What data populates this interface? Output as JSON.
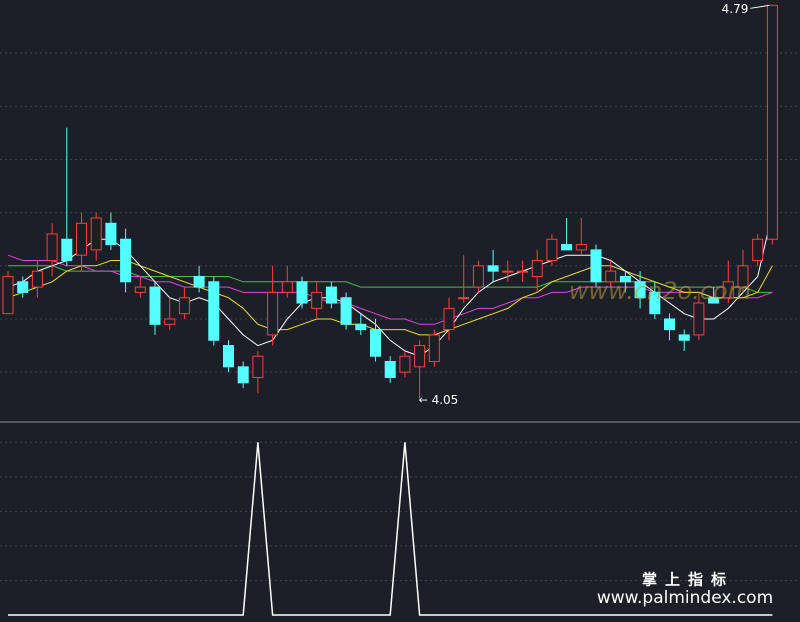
{
  "chart_data": [
    {
      "type": "candlestick",
      "open": [
        4.21,
        4.27,
        4.26,
        4.31,
        4.35,
        4.32,
        4.33,
        4.38,
        4.35,
        4.25,
        4.26,
        4.19,
        4.21,
        4.28,
        4.27,
        4.15,
        4.11,
        4.09,
        4.17,
        4.25,
        4.27,
        4.22,
        4.26,
        4.24,
        4.19,
        4.18,
        4.12,
        4.1,
        4.11,
        4.12,
        4.18,
        4.24,
        4.26,
        4.3,
        4.29,
        4.29,
        4.28,
        4.31,
        4.34,
        4.33,
        4.33,
        4.27,
        4.28,
        4.27,
        4.25,
        4.2,
        4.17,
        4.17,
        4.24,
        4.24,
        4.26,
        4.31,
        4.35
      ],
      "high": [
        4.29,
        4.28,
        4.31,
        4.38,
        4.56,
        4.4,
        4.4,
        4.4,
        4.37,
        4.28,
        4.27,
        4.24,
        4.26,
        4.3,
        4.28,
        4.16,
        4.12,
        4.14,
        4.3,
        4.3,
        4.28,
        4.27,
        4.27,
        4.25,
        4.21,
        4.2,
        4.13,
        4.14,
        4.16,
        4.18,
        4.24,
        4.32,
        4.31,
        4.33,
        4.31,
        4.31,
        4.33,
        4.36,
        4.39,
        4.39,
        4.34,
        4.31,
        4.29,
        4.29,
        4.27,
        4.21,
        4.18,
        4.25,
        4.26,
        4.31,
        4.33,
        4.36,
        4.79
      ],
      "low": [
        4.21,
        4.24,
        4.24,
        4.28,
        4.3,
        4.29,
        4.31,
        4.33,
        4.25,
        4.24,
        4.17,
        4.18,
        4.2,
        4.25,
        4.15,
        4.1,
        4.07,
        4.06,
        4.15,
        4.24,
        4.22,
        4.2,
        4.22,
        4.18,
        4.17,
        4.12,
        4.08,
        4.09,
        4.05,
        4.11,
        4.16,
        4.23,
        4.25,
        4.27,
        4.27,
        4.27,
        4.25,
        4.3,
        4.33,
        4.32,
        4.26,
        4.26,
        4.25,
        4.22,
        4.2,
        4.16,
        4.14,
        4.16,
        4.23,
        4.23,
        4.25,
        4.3,
        4.34
      ],
      "close": [
        4.28,
        4.25,
        4.29,
        4.36,
        4.31,
        4.38,
        4.39,
        4.34,
        4.27,
        4.26,
        4.19,
        4.2,
        4.24,
        4.26,
        4.16,
        4.11,
        4.08,
        4.13,
        4.25,
        4.27,
        4.23,
        4.25,
        4.23,
        4.19,
        4.18,
        4.13,
        4.09,
        4.13,
        4.15,
        4.17,
        4.22,
        4.24,
        4.3,
        4.29,
        4.29,
        4.29,
        4.31,
        4.35,
        4.33,
        4.34,
        4.27,
        4.29,
        4.27,
        4.24,
        4.21,
        4.18,
        4.16,
        4.23,
        4.23,
        4.27,
        4.3,
        4.35,
        4.79
      ],
      "up_color": "#ff3c3c",
      "down_color": "#54ffff",
      "lines": [
        {
          "color": "#40c040",
          "values": [
            4.3,
            4.3,
            4.3,
            4.3,
            4.29,
            4.29,
            4.29,
            4.29,
            4.29,
            4.28,
            4.28,
            4.28,
            4.28,
            4.28,
            4.28,
            4.28,
            4.27,
            4.27,
            4.27,
            4.27,
            4.27,
            4.27,
            4.27,
            4.27,
            4.26,
            4.26,
            4.26,
            4.26,
            4.26,
            4.26,
            4.26,
            4.26,
            4.26,
            4.26,
            4.26,
            4.26,
            4.26,
            4.27,
            4.27,
            4.27,
            4.27,
            4.27,
            4.27,
            4.27,
            4.27,
            4.26,
            4.26,
            4.26,
            4.26,
            4.26,
            4.26,
            4.25,
            4.25
          ]
        },
        {
          "color": "#e040e0",
          "values": [
            4.32,
            4.31,
            4.31,
            4.31,
            4.3,
            4.3,
            4.29,
            4.29,
            4.28,
            4.28,
            4.27,
            4.27,
            4.26,
            4.26,
            4.26,
            4.26,
            4.25,
            4.25,
            4.25,
            4.25,
            4.25,
            4.24,
            4.23,
            4.23,
            4.22,
            4.21,
            4.2,
            4.2,
            4.19,
            4.19,
            4.2,
            4.21,
            4.22,
            4.22,
            4.23,
            4.24,
            4.24,
            4.25,
            4.25,
            4.26,
            4.26,
            4.26,
            4.26,
            4.26,
            4.25,
            4.25,
            4.25,
            4.25,
            4.24,
            4.24,
            4.24,
            4.24,
            4.25
          ]
        },
        {
          "color": "#e8e020",
          "values": [
            4.24,
            4.25,
            4.26,
            4.27,
            4.29,
            4.3,
            4.3,
            4.31,
            4.31,
            4.3,
            4.29,
            4.28,
            4.27,
            4.26,
            4.25,
            4.24,
            4.22,
            4.19,
            4.18,
            4.18,
            4.19,
            4.2,
            4.2,
            4.19,
            4.19,
            4.18,
            4.18,
            4.18,
            4.17,
            4.17,
            4.18,
            4.19,
            4.2,
            4.21,
            4.22,
            4.24,
            4.25,
            4.27,
            4.28,
            4.29,
            4.3,
            4.3,
            4.29,
            4.28,
            4.27,
            4.26,
            4.25,
            4.25,
            4.24,
            4.24,
            4.24,
            4.25,
            4.3
          ]
        },
        {
          "color": "#ffffff",
          "values": [
            4.26,
            4.27,
            4.29,
            4.3,
            4.31,
            4.33,
            4.35,
            4.35,
            4.33,
            4.3,
            4.27,
            4.24,
            4.23,
            4.24,
            4.23,
            4.2,
            4.17,
            4.15,
            4.16,
            4.2,
            4.23,
            4.24,
            4.24,
            4.23,
            4.21,
            4.19,
            4.16,
            4.14,
            4.13,
            4.15,
            4.18,
            4.22,
            4.25,
            4.27,
            4.28,
            4.29,
            4.3,
            4.31,
            4.32,
            4.32,
            4.32,
            4.31,
            4.29,
            4.27,
            4.25,
            4.23,
            4.21,
            4.2,
            4.2,
            4.22,
            4.25,
            4.28,
            4.4
          ]
        }
      ],
      "ylim": [
        4.01,
        4.8
      ],
      "yticks": [
        4.1,
        4.2,
        4.3,
        4.4,
        4.5,
        4.6,
        4.7
      ],
      "grid": true,
      "high_label": 4.79,
      "low_label": 4.05
    },
    {
      "type": "line",
      "color": "#ffffff",
      "values": [
        0,
        0,
        0,
        0,
        0,
        0,
        0,
        0,
        0,
        0,
        0,
        0,
        0,
        0,
        0,
        0,
        0,
        1,
        0,
        0,
        0,
        0,
        0,
        0,
        0,
        0,
        0,
        1,
        0,
        0,
        0,
        0,
        0,
        0,
        0,
        0,
        0,
        0,
        0,
        0,
        0,
        0,
        0,
        0,
        0,
        0,
        0,
        0,
        0,
        0,
        0,
        0,
        0
      ],
      "ylim": [
        0,
        1.1
      ],
      "yticks": [
        0.2,
        0.4,
        0.6,
        0.8,
        1
      ],
      "grid": true
    }
  ],
  "watermarks": [
    "www.cn2o.com",
    "掌上指标",
    "www.palmindex.com"
  ]
}
